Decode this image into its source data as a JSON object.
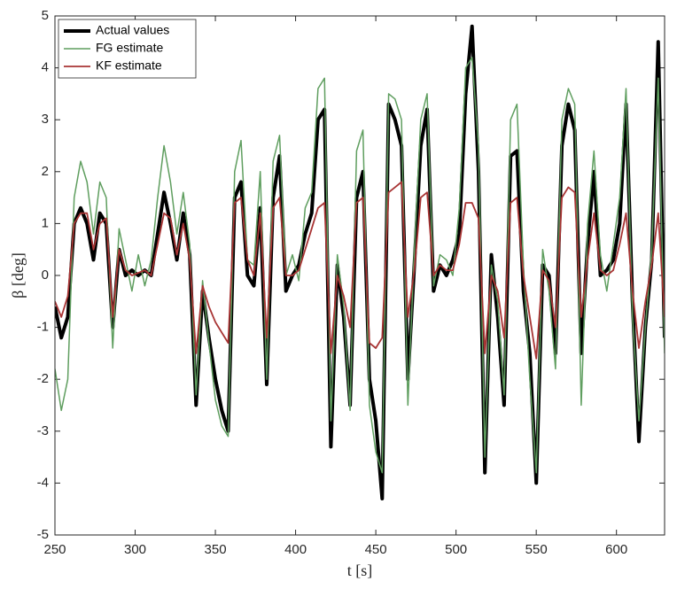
{
  "chart_data": {
    "type": "line",
    "xlabel": "t [s]",
    "ylabel": "β [deg]",
    "x": [
      250,
      254,
      258,
      262,
      266,
      270,
      274,
      278,
      282,
      286,
      290,
      294,
      298,
      302,
      306,
      310,
      314,
      318,
      322,
      326,
      330,
      334,
      338,
      342,
      346,
      350,
      354,
      358,
      362,
      366,
      370,
      374,
      378,
      382,
      386,
      390,
      394,
      398,
      402,
      406,
      410,
      414,
      418,
      422,
      426,
      430,
      434,
      438,
      442,
      446,
      450,
      454,
      458,
      462,
      466,
      470,
      474,
      478,
      482,
      486,
      490,
      494,
      498,
      502,
      506,
      510,
      514,
      518,
      522,
      526,
      530,
      534,
      538,
      542,
      546,
      550,
      554,
      558,
      562,
      566,
      570,
      574,
      578,
      582,
      586,
      590,
      594,
      598,
      602,
      606,
      610,
      614,
      618,
      622,
      626,
      630
    ],
    "series": [
      {
        "name": "Actual values",
        "color": "#000000",
        "values": [
          -0.6,
          -1.2,
          -0.8,
          1.0,
          1.3,
          1.0,
          0.3,
          1.2,
          1.0,
          -1.0,
          0.5,
          0.0,
          0.1,
          0.0,
          0.1,
          0.0,
          0.8,
          1.6,
          1.0,
          0.3,
          1.2,
          0.4,
          -2.5,
          -0.3,
          -1.2,
          -2.0,
          -2.6,
          -3.0,
          1.5,
          1.8,
          0.0,
          -0.2,
          1.3,
          -2.1,
          1.5,
          2.3,
          -0.3,
          0.0,
          0.2,
          0.8,
          1.2,
          3.0,
          3.2,
          -3.3,
          0.2,
          -0.8,
          -2.5,
          1.5,
          2.0,
          -2.0,
          -2.8,
          -4.3,
          3.3,
          3.0,
          2.5,
          -2.0,
          0.2,
          2.5,
          3.2,
          -0.3,
          0.2,
          0.0,
          0.3,
          0.8,
          3.5,
          4.8,
          2.0,
          -3.8,
          0.4,
          -0.8,
          -2.5,
          2.3,
          2.4,
          -0.3,
          -1.5,
          -4.0,
          0.2,
          0.0,
          -1.5,
          2.5,
          3.3,
          2.8,
          -1.5,
          0.6,
          2.0,
          0.0,
          0.1,
          0.3,
          1.0,
          3.3,
          -0.5,
          -3.2,
          -1.0,
          0.3,
          4.5,
          -1.2
        ]
      },
      {
        "name": "FG estimate",
        "color": "#5f9e5f",
        "values": [
          -1.8,
          -2.6,
          -2.0,
          1.5,
          2.2,
          1.8,
          0.8,
          1.8,
          1.5,
          -1.4,
          0.9,
          0.3,
          -0.3,
          0.4,
          -0.2,
          0.3,
          1.5,
          2.5,
          1.8,
          0.8,
          1.6,
          0.6,
          -2.3,
          -0.1,
          -1.3,
          -2.4,
          -2.9,
          -3.1,
          2.0,
          2.6,
          0.3,
          0.2,
          2.0,
          -2.0,
          2.2,
          2.7,
          0.0,
          0.4,
          -0.1,
          1.3,
          1.6,
          3.6,
          3.8,
          -2.8,
          0.4,
          -0.6,
          -2.6,
          2.4,
          2.8,
          -2.5,
          -3.4,
          -3.8,
          3.5,
          3.4,
          3.0,
          -2.5,
          0.5,
          3.0,
          3.5,
          -0.2,
          0.4,
          0.3,
          0.0,
          1.3,
          4.0,
          4.2,
          2.5,
          -3.5,
          0.2,
          -0.5,
          -2.3,
          3.0,
          3.3,
          0.2,
          -2.0,
          -3.8,
          0.5,
          -0.3,
          -1.8,
          3.0,
          3.6,
          3.3,
          -2.5,
          1.0,
          2.4,
          0.4,
          -0.3,
          0.6,
          1.5,
          3.6,
          -0.8,
          -2.8,
          -1.0,
          0.5,
          3.8,
          -1.5
        ]
      },
      {
        "name": "KF estimate",
        "color": "#a83434",
        "values": [
          -0.5,
          -0.8,
          -0.4,
          1.0,
          1.2,
          1.2,
          0.5,
          1.0,
          1.1,
          -0.8,
          0.5,
          0.1,
          0.0,
          0.05,
          0.1,
          0.0,
          0.6,
          1.2,
          1.1,
          0.4,
          1.0,
          0.3,
          -1.5,
          -0.2,
          -0.6,
          -0.9,
          -1.1,
          -1.3,
          1.4,
          1.5,
          0.3,
          0.0,
          1.2,
          -1.2,
          1.3,
          1.5,
          0.0,
          0.0,
          0.1,
          0.5,
          0.9,
          1.3,
          1.4,
          -1.5,
          0.0,
          -0.4,
          -1.0,
          1.4,
          1.5,
          -1.3,
          -1.4,
          -1.2,
          1.6,
          1.7,
          1.8,
          -0.8,
          0.1,
          1.5,
          1.6,
          0.0,
          0.2,
          0.1,
          0.1,
          0.6,
          1.4,
          1.4,
          1.1,
          -1.5,
          0.0,
          -0.3,
          -1.2,
          1.4,
          1.5,
          0.0,
          -0.8,
          -1.6,
          0.1,
          -0.1,
          -1.0,
          1.5,
          1.7,
          1.6,
          -0.8,
          0.3,
          1.2,
          0.1,
          0.0,
          0.1,
          0.6,
          1.2,
          -0.3,
          -1.4,
          -0.5,
          0.2,
          1.2,
          -0.8
        ]
      }
    ],
    "xlim": [
      250,
      630
    ],
    "ylim": [
      -5,
      5
    ],
    "xticks": [
      250,
      300,
      350,
      400,
      450,
      500,
      550,
      600
    ],
    "yticks": [
      -5,
      -4,
      -3,
      -2,
      -1,
      0,
      1,
      2,
      3,
      4,
      5
    ],
    "legend": "upper left"
  }
}
